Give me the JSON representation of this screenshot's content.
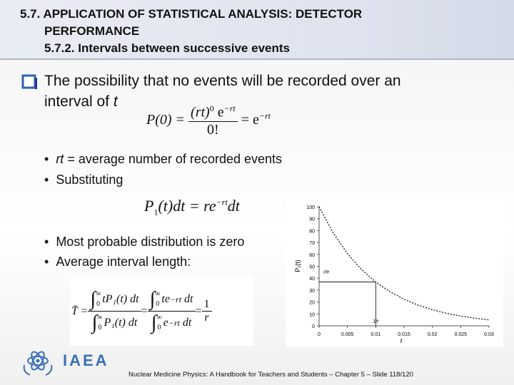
{
  "header": {
    "title_line1": "5.7. APPLICATION OF STATISTICAL ANALYSIS: DETECTOR",
    "title_line2": "PERFORMANCE",
    "subtitle": "5.7.2. Intervals between successive events"
  },
  "main_point": {
    "line1": "The possibility that no events will be recorded over an",
    "line2": "interval of",
    "variable": "t"
  },
  "equation_1": {
    "lhs": "P(0) =",
    "num_base": "(rt)",
    "num_exp": "0",
    "num_e": "e",
    "num_e_exp": "−rt",
    "den": "0!",
    "rhs": "= e",
    "rhs_exp": "−rt"
  },
  "bullets_1": [
    {
      "variable": "rt",
      "text": "= average number of recorded events"
    },
    {
      "text": "Substituting"
    }
  ],
  "equation_2": {
    "lhs": "P",
    "lhs_sub": "1",
    "mid": "(t)dt = re",
    "exp": "−rt",
    "tail": "dt"
  },
  "bullets_2": [
    {
      "text": "Most probable distribution is zero"
    },
    {
      "text": "Average interval length:"
    }
  ],
  "equation_3": {
    "lhs": "T̄ =",
    "integral": "∫",
    "upper": "∞",
    "lower": "0",
    "frac1_num": "tP₁(t) dt",
    "frac1_den": "P₁(t) dt",
    "eq": "=",
    "frac2_num_a": "te",
    "frac2_den_a": "e",
    "exp": "−rt",
    "tail": "dt",
    "result_num": "1",
    "result_den": "r"
  },
  "chart_data": {
    "type": "line",
    "xlabel": "t",
    "ylabel": "P₁(t)",
    "x": [
      0,
      0.0025,
      0.005,
      0.0075,
      0.01,
      0.0125,
      0.015,
      0.0175,
      0.02,
      0.0225,
      0.025,
      0.0275,
      0.03
    ],
    "values": [
      100,
      77.9,
      60.7,
      47.2,
      36.8,
      28.7,
      22.3,
      17.4,
      13.5,
      10.5,
      8.2,
      6.4,
      5.0
    ],
    "color": "#222222",
    "xlim": [
      0,
      0.03
    ],
    "xticks": [
      0,
      0.005,
      0.01,
      0.015,
      0.02,
      0.025,
      0.03
    ],
    "ylim": [
      0,
      100
    ],
    "yticks": [
      0,
      10,
      20,
      30,
      40,
      50,
      60,
      70,
      80,
      90,
      100
    ],
    "annotations": [
      {
        "text": "r/e",
        "x": 0.01,
        "y": 36.8
      },
      {
        "text": "1/r",
        "x": 0.01,
        "y": 0
      }
    ]
  },
  "footer": {
    "logo": "IAEA",
    "text": "Nuclear Medicine Physics: A Handbook for Teachers and Students – Chapter 5 – Slide 118/120"
  }
}
